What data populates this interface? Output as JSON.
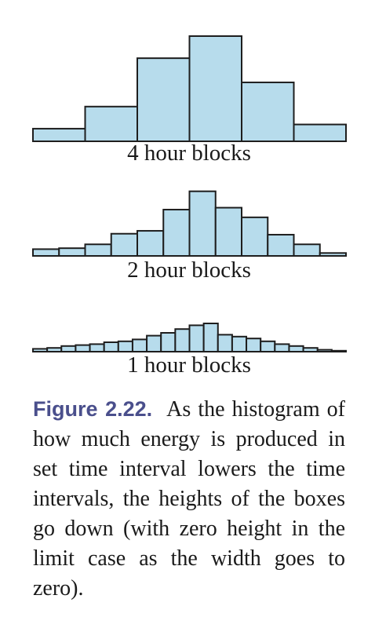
{
  "colors": {
    "bar_fill": "#b7dcec",
    "bar_stroke": "#1e1e1e",
    "caption_label": "#4a4f8c"
  },
  "chart_data": [
    {
      "type": "bar",
      "title": "4 hour blocks",
      "values": [
        12,
        33,
        79,
        100,
        56,
        16
      ],
      "ylim": [
        0,
        100
      ],
      "grid": false
    },
    {
      "type": "bar",
      "title": "2 hour blocks",
      "values": [
        7,
        8,
        12,
        23,
        26,
        48,
        67,
        50,
        40,
        22,
        12,
        3
      ],
      "ylim": [
        0,
        70
      ],
      "grid": false
    },
    {
      "type": "bar",
      "title": "1 hour blocks",
      "values": [
        3,
        4,
        6,
        7,
        8,
        10,
        11,
        13,
        17,
        20,
        24,
        28,
        30,
        18,
        16,
        14,
        11,
        8,
        6,
        4,
        2,
        1
      ],
      "ylim": [
        0,
        30
      ],
      "grid": false
    }
  ],
  "caption": {
    "label": "Figure 2.22.",
    "text": "As the histogram of how much energy is produced in set time interval lowers the time intervals, the heights of the boxes go down (with zero height in the limit case as the width goes to zero)."
  }
}
